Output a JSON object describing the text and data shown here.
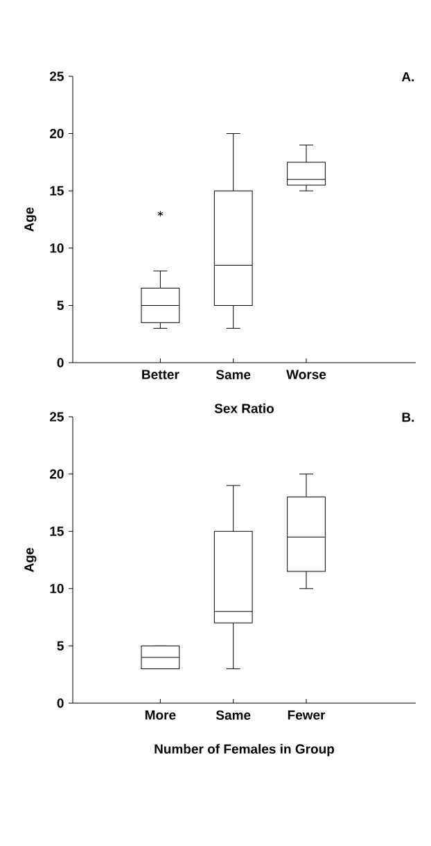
{
  "chart_data": [
    {
      "type": "box",
      "annotations": [
        "A."
      ],
      "xlabel": "Sex Ratio",
      "ylabel": "Age",
      "categories": [
        "Better",
        "Same",
        "Worse"
      ],
      "marker": "star",
      "boxes": [
        {
          "low": 3,
          "q1": 3.5,
          "median": 5,
          "q3": 6.5,
          "high": 8,
          "outliers": [
            13
          ]
        },
        {
          "low": 3,
          "q1": 5,
          "median": 8.5,
          "q3": 15,
          "high": 20
        },
        {
          "low": 15,
          "q1": 15.5,
          "median": 16,
          "q3": 17.5,
          "high": 19
        }
      ],
      "ylim": [
        0,
        25
      ],
      "yticks": [
        0,
        5,
        10,
        15,
        20,
        25
      ]
    },
    {
      "type": "box",
      "annotations": [
        "B."
      ],
      "xlabel": "Number of Females in Group",
      "ylabel": "Age",
      "categories": [
        "More",
        "Same",
        "Fewer"
      ],
      "boxes": [
        {
          "low": 3,
          "q1": 3,
          "median": 4,
          "q3": 5,
          "high": 5
        },
        {
          "low": 3,
          "q1": 7,
          "median": 8,
          "q3": 15,
          "high": 19
        },
        {
          "low": 10,
          "q1": 11.5,
          "median": 14.5,
          "q3": 18,
          "high": 20
        }
      ],
      "ylim": [
        0,
        25
      ],
      "yticks": [
        0,
        5,
        10,
        15,
        20,
        25
      ]
    }
  ]
}
